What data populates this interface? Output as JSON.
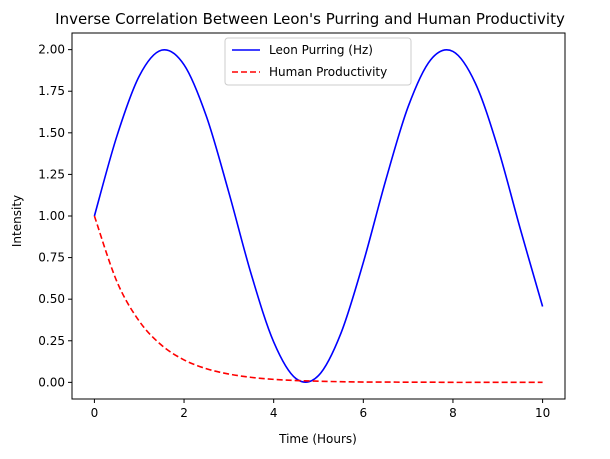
{
  "chart_data": {
    "type": "line",
    "title": "Inverse Correlation Between Leon's Purring and Human Productivity",
    "xlabel": "Time (Hours)",
    "ylabel": "Intensity",
    "xlim": [
      -0.5,
      10.5
    ],
    "ylim": [
      -0.1,
      2.1
    ],
    "xticks": [
      0,
      2,
      4,
      6,
      8,
      10
    ],
    "xtick_labels": [
      "0",
      "2",
      "4",
      "6",
      "8",
      "10"
    ],
    "yticks": [
      0.0,
      0.25,
      0.5,
      0.75,
      1.0,
      1.25,
      1.5,
      1.75,
      2.0
    ],
    "ytick_labels": [
      "0.00",
      "0.25",
      "0.50",
      "0.75",
      "1.00",
      "1.25",
      "1.50",
      "1.75",
      "2.00"
    ],
    "grid": false,
    "legend_position": "upper center",
    "x": [
      0,
      0.5,
      1,
      1.5,
      2,
      2.5,
      3,
      3.5,
      4,
      4.5,
      5,
      5.5,
      6,
      6.5,
      7,
      7.5,
      8,
      8.5,
      9,
      9.5,
      10
    ],
    "series": [
      {
        "name": "Leon Purring (Hz)",
        "color": "#0000ff",
        "linestyle": "solid",
        "values": [
          1.0,
          1.479,
          1.841,
          1.997,
          1.909,
          1.598,
          1.141,
          0.649,
          0.243,
          0.022,
          0.041,
          0.295,
          0.721,
          1.215,
          1.657,
          1.938,
          1.989,
          1.798,
          1.412,
          0.925,
          0.456
        ]
      },
      {
        "name": "Human Productivity",
        "color": "#ff0000",
        "linestyle": "dashed",
        "values": [
          1.0,
          0.607,
          0.368,
          0.223,
          0.135,
          0.082,
          0.05,
          0.03,
          0.018,
          0.011,
          0.007,
          0.004,
          0.002,
          0.002,
          0.001,
          0.001,
          0.0,
          0.0,
          0.0,
          0.0,
          0.0
        ]
      }
    ]
  }
}
